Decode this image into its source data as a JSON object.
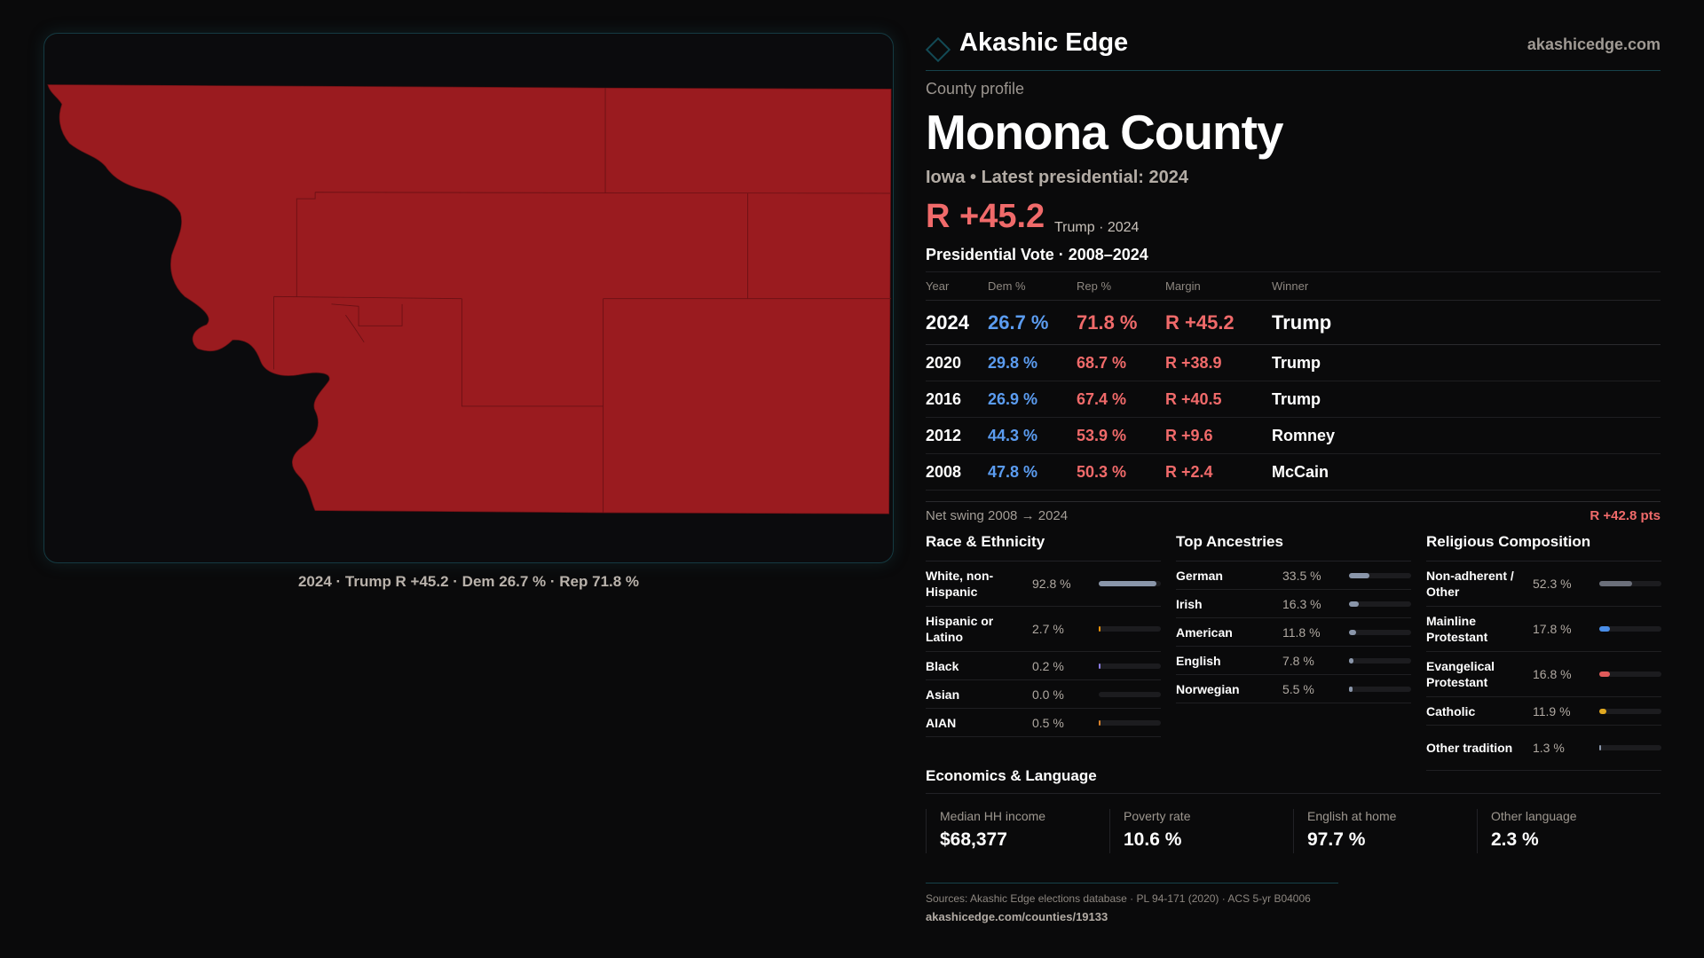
{
  "brand": {
    "name": "Akashic Edge",
    "site": "akashicedge.com",
    "accent": "#134a55"
  },
  "map": {
    "caption": "2024 · Trump R +45.2 · Dem 26.7 % · Rep 71.8 %",
    "fill": "#9a1b1f"
  },
  "profile": {
    "kicker": "County profile",
    "title": "Monona County",
    "subtitle": "Iowa • Latest presidential: 2024",
    "margin": "R +45.2",
    "margin_note": "Trump · 2024"
  },
  "votes": {
    "heading": "Presidential Vote · 2008–2024",
    "columns": [
      "Year",
      "Dem %",
      "Rep %",
      "Margin",
      "Winner"
    ],
    "rows": [
      {
        "year": "2024",
        "dem": "26.7 %",
        "rep": "71.8 %",
        "margin": "R +45.2",
        "winner": "Trump"
      },
      {
        "year": "2020",
        "dem": "29.8 %",
        "rep": "68.7 %",
        "margin": "R +38.9",
        "winner": "Trump"
      },
      {
        "year": "2016",
        "dem": "26.9 %",
        "rep": "67.4 %",
        "margin": "R +40.5",
        "winner": "Trump"
      },
      {
        "year": "2012",
        "dem": "44.3 %",
        "rep": "53.9 %",
        "margin": "R +9.6",
        "winner": "Romney"
      },
      {
        "year": "2008",
        "dem": "47.8 %",
        "rep": "50.3 %",
        "margin": "R +2.4",
        "winner": "McCain"
      }
    ],
    "swing_label": "Net swing 2008 → 2024",
    "swing_value": "R +42.8 pts"
  },
  "race": {
    "heading": "Race & Ethnicity",
    "items": [
      {
        "label": "White, non-Hispanic",
        "value": "92.8 %",
        "pct": 92.8,
        "color": "#8a96aa"
      },
      {
        "label": "Hispanic or Latino",
        "value": "2.7 %",
        "pct": 2.7,
        "color": "#e8920c"
      },
      {
        "label": "Black",
        "value": "0.2 %",
        "pct": 0.2,
        "color": "#8a7be0"
      },
      {
        "label": "Asian",
        "value": "0.0 %",
        "pct": 0,
        "color": "#2bb3a6"
      },
      {
        "label": "AIAN",
        "value": "0.5 %",
        "pct": 0.5,
        "color": "#d9822b"
      }
    ]
  },
  "ancestry": {
    "heading": "Top Ancestries",
    "items": [
      {
        "label": "German",
        "value": "33.5 %",
        "pct": 33.5,
        "color": "#8a96aa"
      },
      {
        "label": "Irish",
        "value": "16.3 %",
        "pct": 16.3,
        "color": "#8a96aa"
      },
      {
        "label": "American",
        "value": "11.8 %",
        "pct": 11.8,
        "color": "#8a96aa"
      },
      {
        "label": "English",
        "value": "7.8 %",
        "pct": 7.8,
        "color": "#8a96aa"
      },
      {
        "label": "Norwegian",
        "value": "5.5 %",
        "pct": 5.5,
        "color": "#8a96aa"
      }
    ]
  },
  "religion": {
    "heading": "Religious Composition",
    "items": [
      {
        "label": "Non-adherent / Other",
        "value": "52.3 %",
        "pct": 52.3,
        "color": "#6b6f7a"
      },
      {
        "label": "Mainline Protestant",
        "value": "17.8 %",
        "pct": 17.8,
        "color": "#4a8ee8"
      },
      {
        "label": "Evangelical Protestant",
        "value": "16.8 %",
        "pct": 16.8,
        "color": "#e05a5a"
      },
      {
        "label": "Catholic",
        "value": "11.9 %",
        "pct": 11.9,
        "color": "#e0a820"
      },
      {
        "label": "Other tradition",
        "value": "1.3 %",
        "pct": 1.3,
        "color": "#8a96aa"
      }
    ]
  },
  "econ": {
    "heading": "Economics & Language",
    "cards": [
      {
        "label": "Median HH income",
        "value": "$68,377"
      },
      {
        "label": "Poverty rate",
        "value": "10.6 %"
      },
      {
        "label": "English at home",
        "value": "97.7 %"
      },
      {
        "label": "Other language",
        "value": "2.3 %"
      }
    ]
  },
  "footer": {
    "sources": "Sources: Akashic Edge elections database · PL 94-171 (2020) · ACS 5-yr B04006",
    "url": "akashicedge.com/counties/19133"
  }
}
